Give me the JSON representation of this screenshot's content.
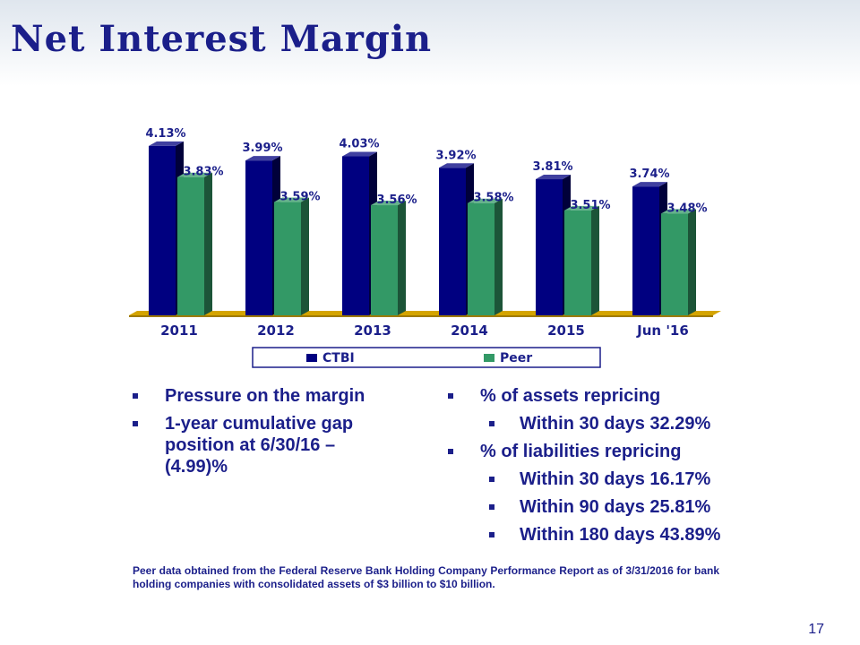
{
  "title": "Net Interest Margin",
  "colors": {
    "title": "#1b1f8a",
    "ctbi": "#000080",
    "peer": "#339966",
    "floor": "#d4a400"
  },
  "chart_data": {
    "type": "bar",
    "categories": [
      "2011",
      "2012",
      "2013",
      "2014",
      "2015",
      "Jun '16"
    ],
    "series": [
      {
        "name": "CTBI",
        "values": [
          4.13,
          3.99,
          4.03,
          3.92,
          3.81,
          3.74
        ],
        "labels": [
          "4.13%",
          "3.99%",
          "4.03%",
          "3.92%",
          "3.81%",
          "3.74%"
        ]
      },
      {
        "name": "Peer",
        "values": [
          3.83,
          3.59,
          3.56,
          3.58,
          3.51,
          3.48
        ],
        "labels": [
          "3.83%",
          "3.59%",
          "3.56%",
          "3.58%",
          "3.51%",
          "3.48%"
        ]
      }
    ],
    "legend_position": "bottom",
    "grid": false,
    "three_d": true
  },
  "bullets_left": [
    {
      "text": "Pressure on the margin"
    },
    {
      "text": "1-year cumulative gap position at 6/30/16 – (4.99)%"
    }
  ],
  "bullets_right": [
    {
      "text": "% of assets repricing",
      "sub": [
        "Within 30 days 32.29%"
      ]
    },
    {
      "text": "% of liabilities repricing",
      "sub": [
        "Within 30 days 16.17%",
        "Within 90 days 25.81%",
        "Within 180 days 43.89%"
      ]
    }
  ],
  "footnote": "Peer data obtained from the Federal Reserve Bank Holding Company Performance Report as of 3/31/2016 for bank holding companies with consolidated assets of $3 billion to $10 billion.",
  "page_number": "17"
}
